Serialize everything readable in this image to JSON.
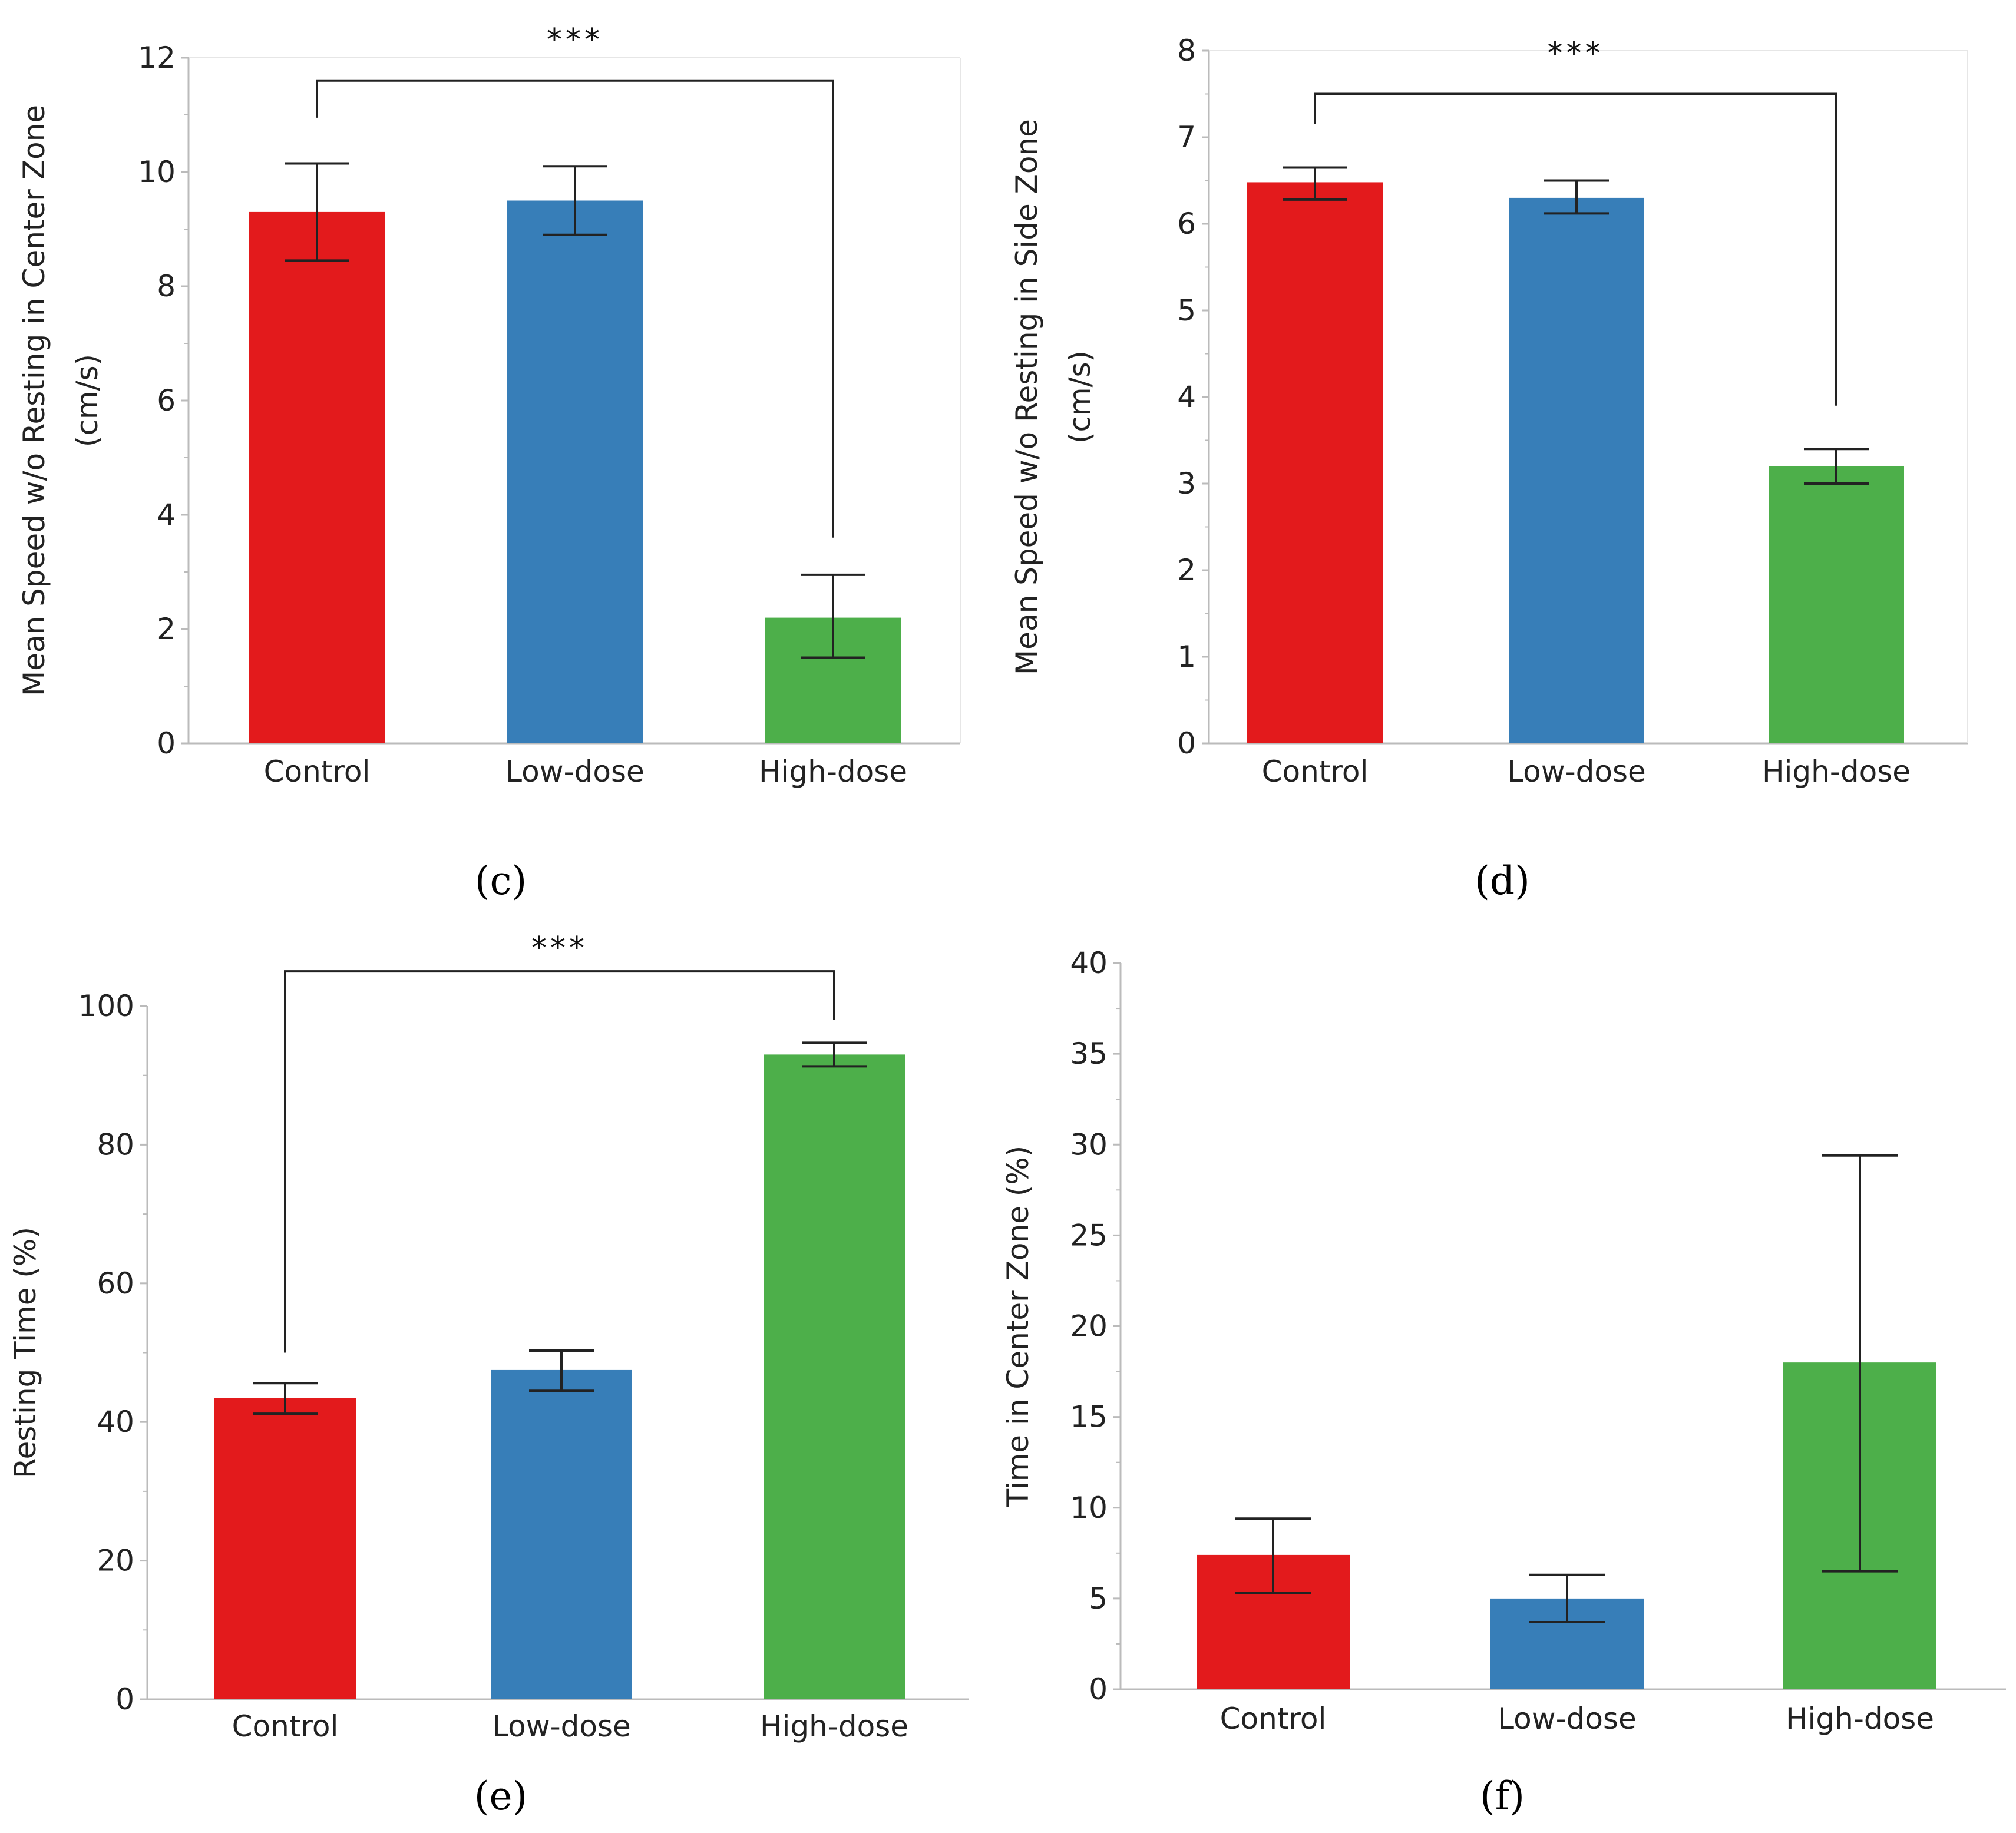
{
  "chart_data": [
    {
      "panel": "c",
      "type": "bar",
      "categories": [
        "Control",
        "Low-dose",
        "High-dose"
      ],
      "values": [
        9.3,
        9.5,
        2.2
      ],
      "error_low": [
        8.45,
        8.9,
        1.5
      ],
      "error_high": [
        10.15,
        10.1,
        2.95
      ],
      "ylim": [
        0,
        12
      ],
      "yticks": [
        "0",
        "2",
        "4",
        "6",
        "8",
        "10",
        "12"
      ],
      "ytick_values": [
        0,
        2,
        4,
        6,
        8,
        10,
        12
      ],
      "ylabel_lines": [
        "Mean Speed w/o Resting in Center Zone",
        "(cm/s)"
      ],
      "xlabel": "",
      "significance": {
        "from": 0,
        "to": 2,
        "label": "***",
        "level": 11.6,
        "left_drop": 10.95,
        "right_drop": 3.6
      },
      "label": "(c)"
    },
    {
      "panel": "d",
      "type": "bar",
      "categories": [
        "Control",
        "Low-dose",
        "High-dose"
      ],
      "values": [
        6.48,
        6.3,
        3.2
      ],
      "error_low": [
        6.28,
        6.12,
        3.0
      ],
      "error_high": [
        6.65,
        6.5,
        3.4
      ],
      "ylim": [
        0,
        8
      ],
      "yticks": [
        "0",
        "1",
        "2",
        "3",
        "4",
        "5",
        "6",
        "7",
        "8"
      ],
      "ytick_values": [
        0,
        1,
        2,
        3,
        4,
        5,
        6,
        7,
        8
      ],
      "ylabel_lines": [
        "Mean Speed w/o Resting in Side Zone",
        "(cm/s)"
      ],
      "xlabel": "",
      "significance": {
        "from": 0,
        "to": 2,
        "label": "***",
        "level": 7.5,
        "left_drop": 7.15,
        "right_drop": 3.9
      },
      "label": "(d)"
    },
    {
      "panel": "e",
      "type": "bar",
      "categories": [
        "Control",
        "Low-dose",
        "High-dose"
      ],
      "values": [
        43.5,
        47.5,
        93
      ],
      "error_low": [
        41.2,
        44.5,
        91.3
      ],
      "error_high": [
        45.6,
        50.3,
        94.7
      ],
      "ylim": [
        0,
        100
      ],
      "yticks": [
        "0",
        "20",
        "40",
        "60",
        "80",
        "100"
      ],
      "ytick_values": [
        0,
        20,
        40,
        60,
        80,
        100
      ],
      "ylabel_lines": [
        "Resting Time (%)"
      ],
      "xlabel": "",
      "significance": {
        "from": 0,
        "to": 2,
        "label": "***",
        "level": 105,
        "left_drop": 50,
        "right_drop": 98
      },
      "label": "(e)"
    },
    {
      "panel": "f",
      "type": "bar",
      "categories": [
        "Control",
        "Low-dose",
        "High-dose"
      ],
      "values": [
        7.4,
        5.0,
        18.0
      ],
      "error_low": [
        5.3,
        3.7,
        6.5
      ],
      "error_high": [
        9.4,
        6.3,
        29.4
      ],
      "ylim": [
        0,
        40
      ],
      "yticks": [
        "0",
        "5",
        "10",
        "15",
        "20",
        "25",
        "30",
        "35",
        "40"
      ],
      "ytick_values": [
        0,
        5,
        10,
        15,
        20,
        25,
        30,
        35,
        40
      ],
      "ylabel_lines": [
        "Time in Center Zone (%)"
      ],
      "xlabel": "",
      "label": "(f)"
    }
  ],
  "colors": {
    "Control": "#e31a1c",
    "Low-dose": "#377eb8",
    "High-dose": "#4daf4a",
    "axis": "#bbbbbb",
    "error": "#222222",
    "bracket": "#222222"
  }
}
